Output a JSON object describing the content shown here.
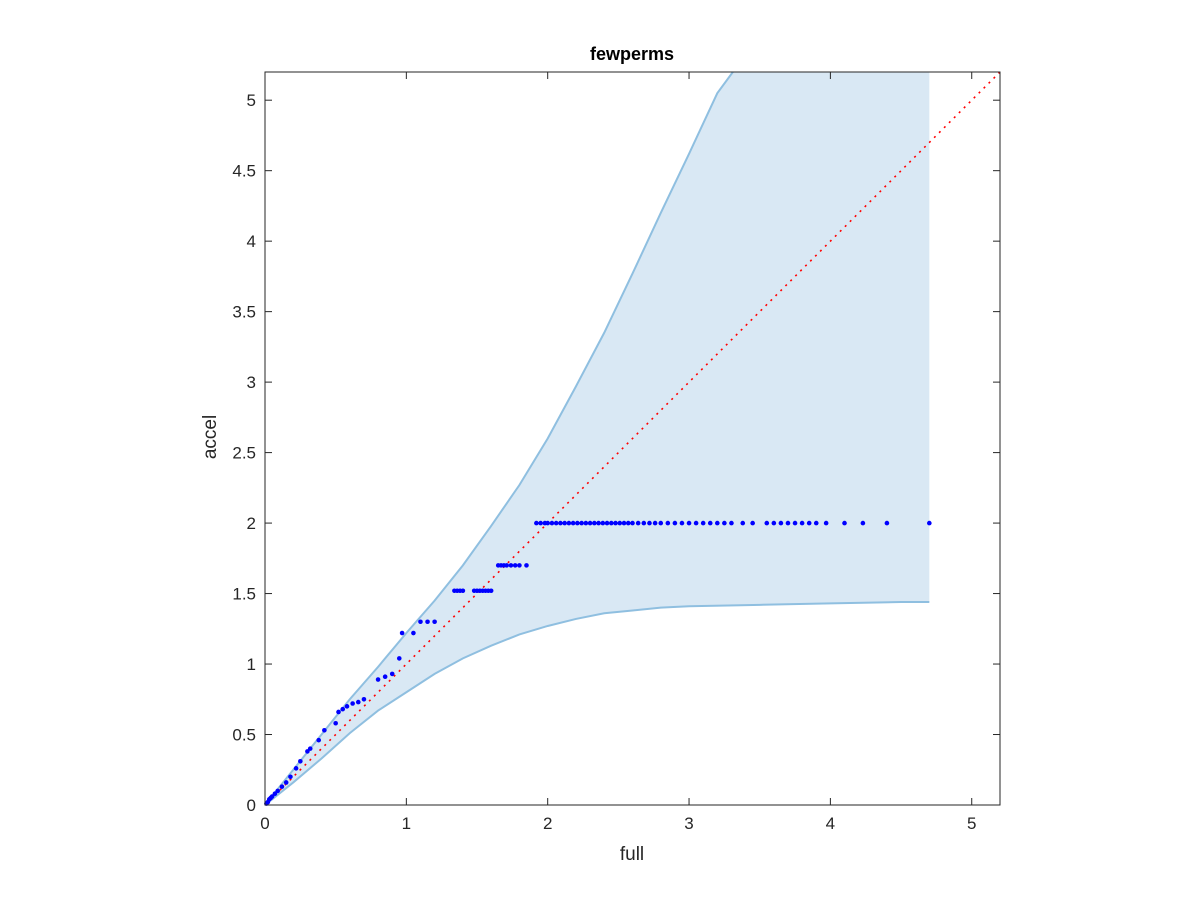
{
  "chart_data": {
    "type": "scatter",
    "title": "fewperms",
    "xlabel": "full",
    "ylabel": "accel",
    "xlim": [
      0,
      5.2
    ],
    "ylim": [
      0,
      5.2
    ],
    "xticks": [
      0,
      1,
      2,
      3,
      4,
      5
    ],
    "yticks": [
      0,
      0.5,
      1,
      1.5,
      2,
      2.5,
      3,
      3.5,
      4,
      4.5,
      5
    ],
    "xtick_labels": [
      "0",
      "1",
      "2",
      "3",
      "4",
      "5"
    ],
    "ytick_labels": [
      "0",
      "0.5",
      "1",
      "1.5",
      "2",
      "2.5",
      "3",
      "3.5",
      "4",
      "4.5",
      "5"
    ],
    "grid": false,
    "colors": {
      "band_fill": "#d9e8f4",
      "band_edge": "#8fbfe0",
      "points": "#0000ff",
      "reference": "#ff0000",
      "axes": "#262626"
    },
    "band": {
      "x_max": 4.7,
      "upper": [
        [
          0,
          0
        ],
        [
          0.2,
          0.25
        ],
        [
          0.4,
          0.5
        ],
        [
          0.6,
          0.75
        ],
        [
          0.8,
          0.98
        ],
        [
          1.0,
          1.22
        ],
        [
          1.2,
          1.45
        ],
        [
          1.4,
          1.7
        ],
        [
          1.6,
          1.98
        ],
        [
          1.8,
          2.27
        ],
        [
          2.0,
          2.6
        ],
        [
          2.2,
          2.97
        ],
        [
          2.4,
          3.35
        ],
        [
          2.6,
          3.77
        ],
        [
          2.8,
          4.2
        ],
        [
          3.0,
          4.62
        ],
        [
          3.2,
          5.05
        ],
        [
          3.31,
          5.2
        ]
      ],
      "lower": [
        [
          0,
          0
        ],
        [
          0.2,
          0.16
        ],
        [
          0.4,
          0.33
        ],
        [
          0.6,
          0.51
        ],
        [
          0.8,
          0.67
        ],
        [
          1.0,
          0.8
        ],
        [
          1.2,
          0.93
        ],
        [
          1.4,
          1.04
        ],
        [
          1.6,
          1.13
        ],
        [
          1.8,
          1.21
        ],
        [
          2.0,
          1.27
        ],
        [
          2.2,
          1.32
        ],
        [
          2.4,
          1.36
        ],
        [
          2.6,
          1.38
        ],
        [
          2.8,
          1.4
        ],
        [
          3.0,
          1.41
        ],
        [
          3.5,
          1.42
        ],
        [
          4.0,
          1.43
        ],
        [
          4.5,
          1.44
        ],
        [
          4.7,
          1.44
        ]
      ]
    },
    "reference_line": {
      "x": [
        0,
        5.2
      ],
      "y": [
        0,
        5.2
      ],
      "style": "dotted"
    },
    "points": [
      [
        0.01,
        0.01
      ],
      [
        0.02,
        0.02
      ],
      [
        0.03,
        0.04
      ],
      [
        0.04,
        0.05
      ],
      [
        0.05,
        0.06
      ],
      [
        0.07,
        0.08
      ],
      [
        0.09,
        0.1
      ],
      [
        0.12,
        0.13
      ],
      [
        0.15,
        0.16
      ],
      [
        0.18,
        0.2
      ],
      [
        0.22,
        0.26
      ],
      [
        0.25,
        0.31
      ],
      [
        0.3,
        0.38
      ],
      [
        0.32,
        0.4
      ],
      [
        0.38,
        0.46
      ],
      [
        0.42,
        0.53
      ],
      [
        0.5,
        0.58
      ],
      [
        0.52,
        0.66
      ],
      [
        0.55,
        0.68
      ],
      [
        0.58,
        0.7
      ],
      [
        0.62,
        0.72
      ],
      [
        0.66,
        0.73
      ],
      [
        0.7,
        0.75
      ],
      [
        0.8,
        0.89
      ],
      [
        0.85,
        0.91
      ],
      [
        0.9,
        0.93
      ],
      [
        0.95,
        1.04
      ],
      [
        0.97,
        1.22
      ],
      [
        1.05,
        1.22
      ],
      [
        1.1,
        1.3
      ],
      [
        1.15,
        1.3
      ],
      [
        1.2,
        1.3
      ],
      [
        1.34,
        1.52
      ],
      [
        1.36,
        1.52
      ],
      [
        1.38,
        1.52
      ],
      [
        1.4,
        1.52
      ],
      [
        1.48,
        1.52
      ],
      [
        1.5,
        1.52
      ],
      [
        1.52,
        1.52
      ],
      [
        1.54,
        1.52
      ],
      [
        1.56,
        1.52
      ],
      [
        1.58,
        1.52
      ],
      [
        1.6,
        1.52
      ],
      [
        1.65,
        1.7
      ],
      [
        1.67,
        1.7
      ],
      [
        1.69,
        1.7
      ],
      [
        1.71,
        1.7
      ],
      [
        1.74,
        1.7
      ],
      [
        1.77,
        1.7
      ],
      [
        1.8,
        1.7
      ],
      [
        1.85,
        1.7
      ],
      [
        1.92,
        2
      ],
      [
        1.95,
        2
      ],
      [
        1.98,
        2
      ],
      [
        2.0,
        2
      ],
      [
        2.03,
        2
      ],
      [
        2.06,
        2
      ],
      [
        2.09,
        2
      ],
      [
        2.12,
        2
      ],
      [
        2.15,
        2
      ],
      [
        2.18,
        2
      ],
      [
        2.21,
        2
      ],
      [
        2.24,
        2
      ],
      [
        2.27,
        2
      ],
      [
        2.3,
        2
      ],
      [
        2.33,
        2
      ],
      [
        2.36,
        2
      ],
      [
        2.39,
        2
      ],
      [
        2.42,
        2
      ],
      [
        2.45,
        2
      ],
      [
        2.48,
        2
      ],
      [
        2.51,
        2
      ],
      [
        2.54,
        2
      ],
      [
        2.57,
        2
      ],
      [
        2.6,
        2
      ],
      [
        2.64,
        2
      ],
      [
        2.68,
        2
      ],
      [
        2.72,
        2
      ],
      [
        2.76,
        2
      ],
      [
        2.8,
        2
      ],
      [
        2.85,
        2
      ],
      [
        2.9,
        2
      ],
      [
        2.95,
        2
      ],
      [
        3.0,
        2
      ],
      [
        3.05,
        2
      ],
      [
        3.1,
        2
      ],
      [
        3.15,
        2
      ],
      [
        3.2,
        2
      ],
      [
        3.25,
        2
      ],
      [
        3.3,
        2
      ],
      [
        3.38,
        2
      ],
      [
        3.45,
        2
      ],
      [
        3.55,
        2
      ],
      [
        3.6,
        2
      ],
      [
        3.65,
        2
      ],
      [
        3.7,
        2
      ],
      [
        3.75,
        2
      ],
      [
        3.8,
        2
      ],
      [
        3.85,
        2
      ],
      [
        3.9,
        2
      ],
      [
        3.97,
        2
      ],
      [
        4.1,
        2
      ],
      [
        4.23,
        2
      ],
      [
        4.4,
        2
      ],
      [
        4.7,
        2
      ]
    ]
  }
}
